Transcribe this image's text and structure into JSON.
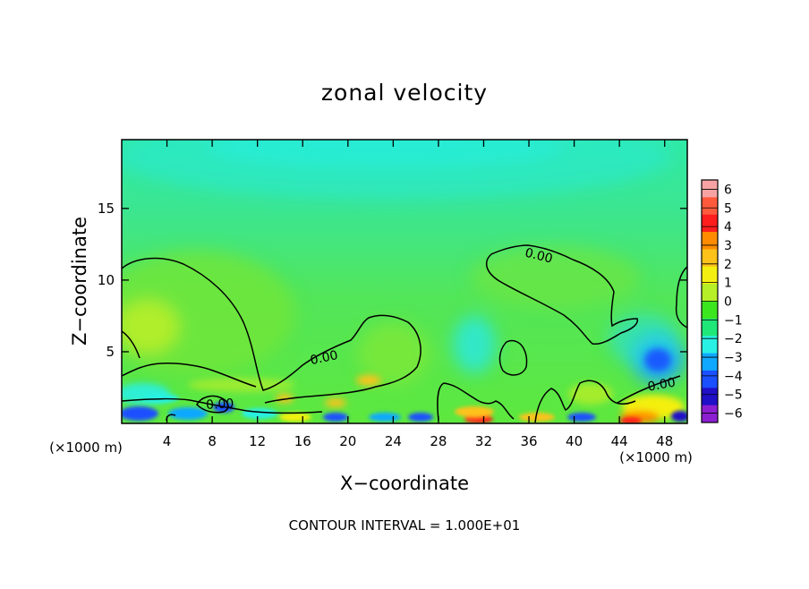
{
  "chart_data": {
    "type": "heatmap",
    "title": "zonal velocity",
    "xlabel": "X−coordinate",
    "ylabel": "Z−coordinate",
    "xunit_left": "(×1000 m)",
    "xunit_right": "(×1000 m)",
    "xlim": [
      0,
      50
    ],
    "ylim": [
      0,
      19.8
    ],
    "xticks": [
      "4",
      "8",
      "12",
      "16",
      "20",
      "24",
      "28",
      "32",
      "36",
      "40",
      "44",
      "48"
    ],
    "xtick_values": [
      4,
      8,
      12,
      16,
      20,
      24,
      28,
      32,
      36,
      40,
      44,
      48
    ],
    "yticks": [
      "5",
      "10",
      "15"
    ],
    "ytick_values": [
      5,
      10,
      15
    ],
    "colorbar": {
      "labels": [
        "6",
        "5",
        "4",
        "3",
        "2",
        "1",
        "0",
        "−1",
        "−2",
        "−3",
        "−4",
        "−5",
        "−6"
      ],
      "colors": [
        "#f7a3a3",
        "#ff5a3c",
        "#ff1e1e",
        "#ff8c00",
        "#ffc21a",
        "#f4ef10",
        "#b6ee28",
        "#3ce61e",
        "#20e878",
        "#28f0e4",
        "#10a8ff",
        "#1a50ff",
        "#2010c8",
        "#8c1ed2"
      ]
    },
    "contour_labels": [
      "0.00",
      "0.00",
      "0.00",
      "0.00"
    ],
    "footer": "CONTOUR INTERVAL = 1.000E+01",
    "grid": false,
    "legend": "colorbar-right"
  }
}
